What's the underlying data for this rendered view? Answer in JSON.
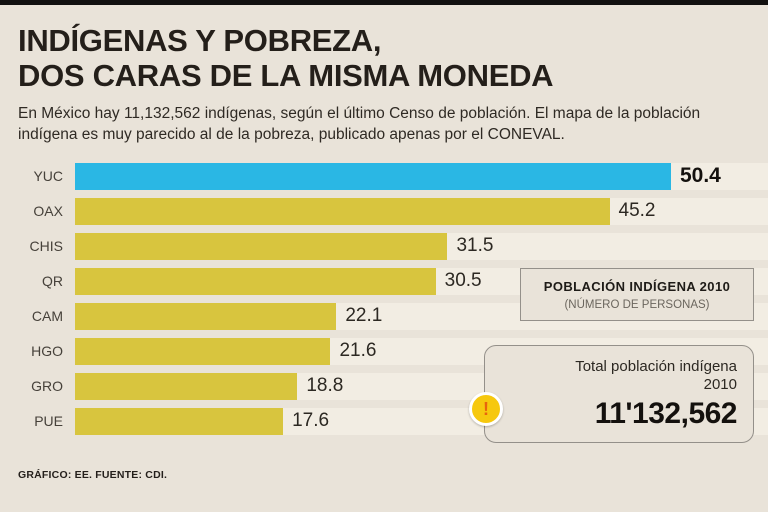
{
  "meta": {
    "background_color": "#e9e3d9",
    "bar_color": "#d8c53e",
    "highlight_bar_color": "#2ab7e4",
    "top_rule_color": "#121110"
  },
  "header": {
    "title_line1": "INDÍGENAS Y POBREZA,",
    "title_line2": "DOS CARAS DE LA MISMA MONEDA",
    "subtitle": "En México hay 11,132,562 indígenas, según el último Censo de población. El mapa de la población indígena es muy parecido al de la pobreza, publicado apenas por el CONEVAL."
  },
  "chart_data": {
    "type": "bar",
    "orientation": "horizontal",
    "title": "POBLACIÓN INDÍGENA 2010",
    "subtitle": "(NÚMERO DE PERSONAS)",
    "categories": [
      "YUC",
      "OAX",
      "CHIS",
      "QR",
      "CAM",
      "HGO",
      "GRO",
      "PUE"
    ],
    "values": [
      50.4,
      45.2,
      31.5,
      30.5,
      22.1,
      21.6,
      18.8,
      17.6
    ],
    "highlight_category": "YUC",
    "xlim": [
      0,
      50.4
    ],
    "grid": false,
    "legend_position": "right"
  },
  "legend": {
    "title": "POBLACIÓN INDÍGENA 2010",
    "subtitle": "(NÚMERO DE PERSONAS)"
  },
  "total_box": {
    "label_line1": "Total población indígena",
    "label_line2": "2010",
    "value": "11'132,562",
    "icon": "!"
  },
  "footer": {
    "credit": "GRÁFICO: EE. FUENTE: CDI."
  }
}
